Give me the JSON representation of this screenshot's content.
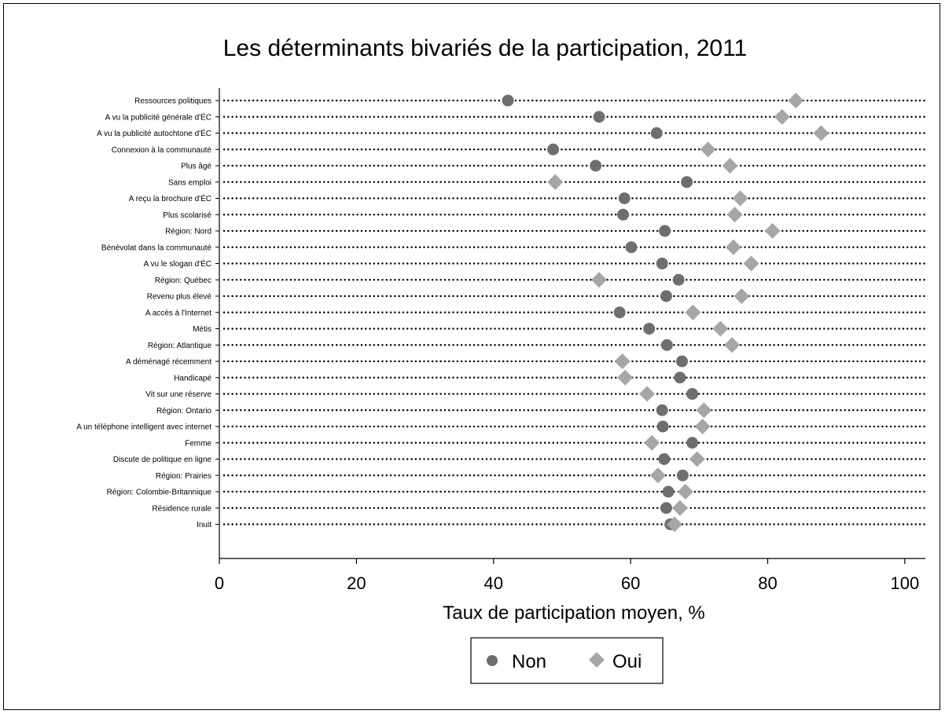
{
  "chart_data": {
    "type": "scatter",
    "title": "Les déterminants bivariés de la participation, 2011",
    "xlabel": "Taux de participation moyen, %",
    "xlim": [
      0,
      103
    ],
    "xticks": [
      0,
      20,
      40,
      60,
      80,
      100
    ],
    "categories": [
      "Ressources politiques",
      "A vu la publicité générale d'ÉC",
      "A vu la publicité autochtone d'ÉC",
      "Connexion à la communauté",
      "Plus âgé",
      "Sans emploi",
      "A reçu la brochure d'ÉC",
      "Plus scolarisé",
      "Région: Nord",
      "Bénévolat dans la communauté",
      "A vu le slogan d'ÉC",
      "Région: Québec",
      "Revenu plus élevé",
      "A accès à l'Internet",
      "Métis",
      "Région: Atlantique",
      "A déménagé récemment",
      "Handicapé",
      "Vit sur une réserve",
      "Région: Ontario",
      "A un téléphone intelligent avec internet",
      "Femme",
      "Discute de politique en ligne",
      "Région: Prairies",
      "Région: Colombie-Britannique",
      "Résidence rurale",
      "Inuit"
    ],
    "series": [
      {
        "name": "Non",
        "marker": "circle",
        "color": "#6e6e6e",
        "values": [
          42.1,
          55.4,
          63.8,
          48.7,
          54.9,
          68.2,
          59.1,
          58.9,
          65.0,
          60.1,
          64.6,
          67.0,
          65.2,
          58.4,
          62.7,
          65.3,
          67.5,
          67.2,
          69.0,
          64.6,
          64.7,
          69.0,
          64.9,
          67.6,
          65.5,
          65.2,
          65.8
        ]
      },
      {
        "name": "Oui",
        "marker": "diamond",
        "color": "#a6a6a6",
        "values": [
          84.1,
          82.1,
          87.8,
          71.3,
          74.5,
          49.0,
          76.0,
          75.2,
          80.7,
          75.0,
          77.6,
          55.4,
          76.2,
          69.1,
          73.1,
          74.8,
          58.8,
          59.2,
          62.4,
          70.7,
          70.5,
          63.1,
          69.7,
          64.0,
          68.0,
          67.2,
          66.4
        ]
      }
    ],
    "grid": "dotted horizontal lines",
    "legend_position": "bottom"
  }
}
